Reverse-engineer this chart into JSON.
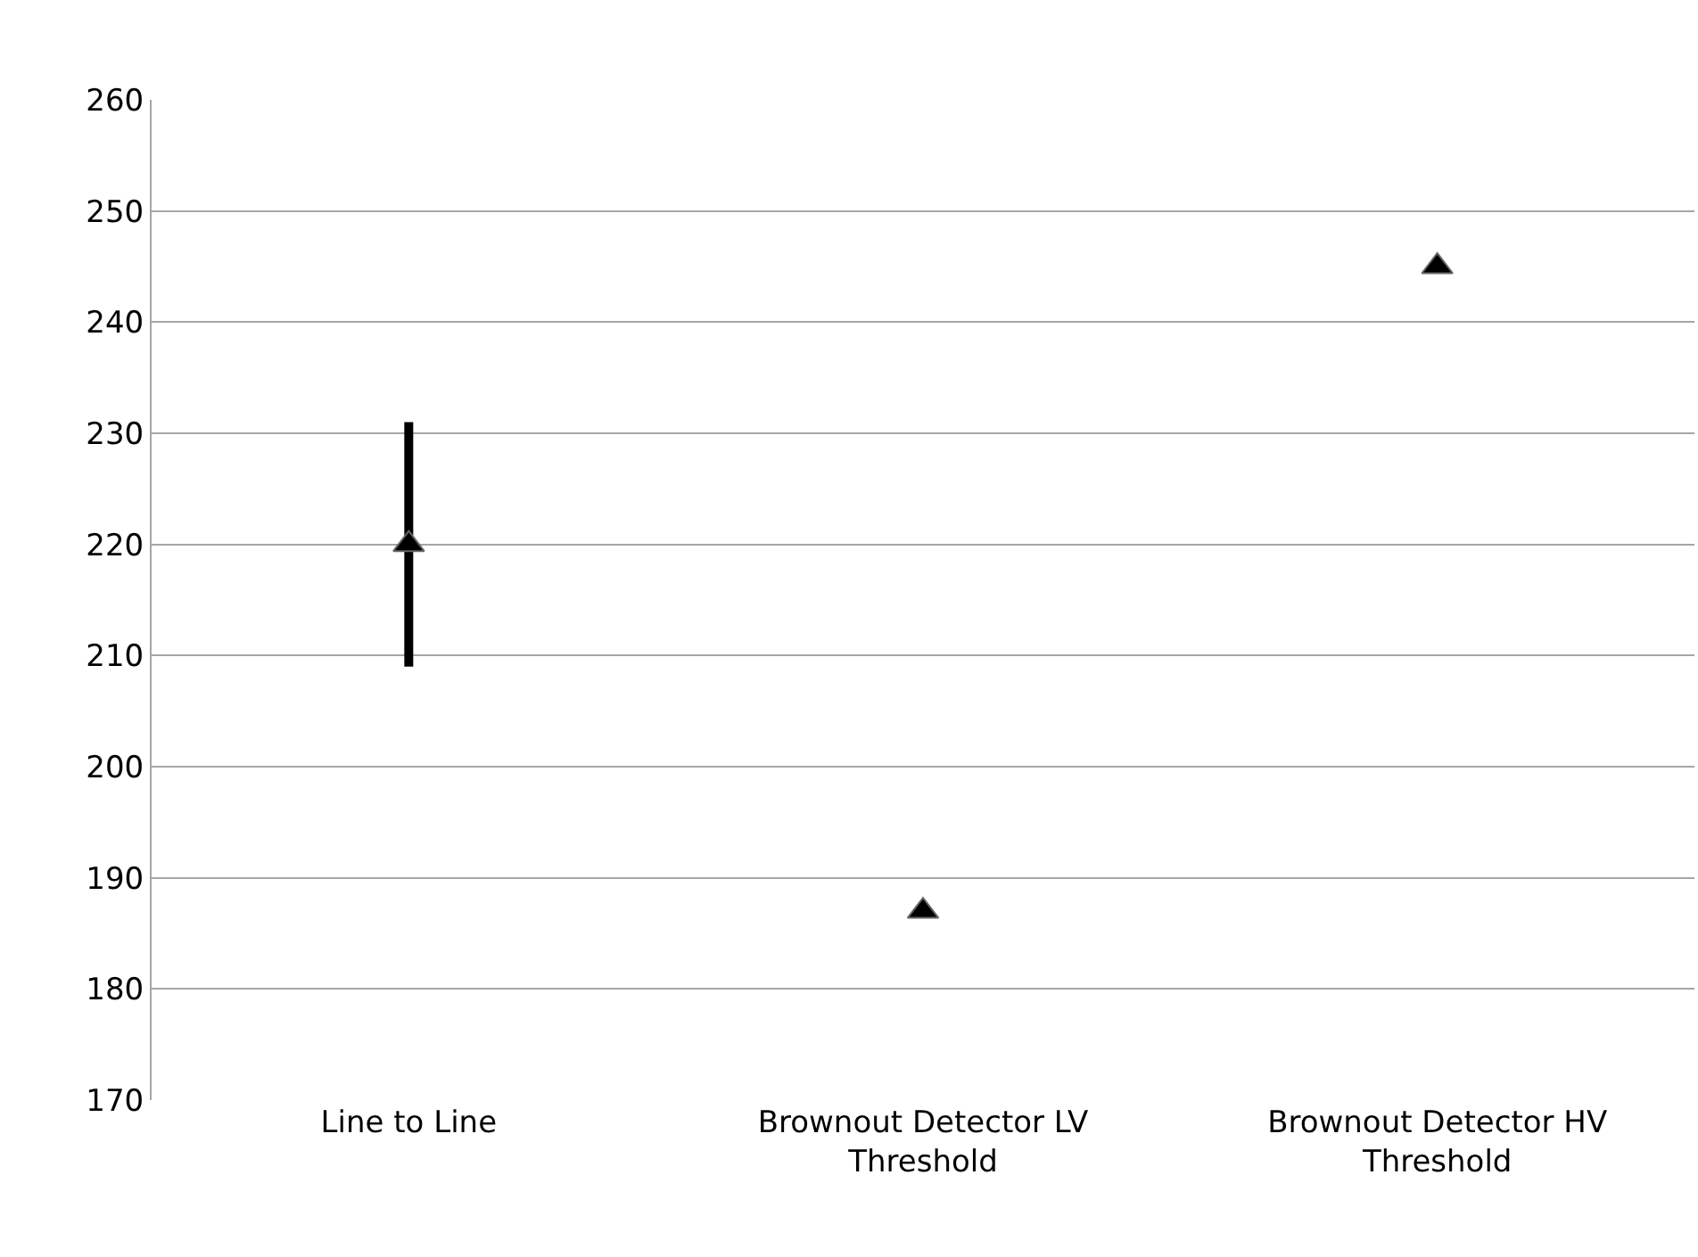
{
  "chart_data": {
    "type": "scatter",
    "categories": [
      "Line to Line",
      "Brownout Detector LV Threshold",
      "Brownout Detector HV Threshold"
    ],
    "values": [
      220,
      187,
      245
    ],
    "errors": [
      11,
      null,
      null
    ],
    "color": "#000000",
    "marker": "triangle",
    "ylim": [
      170,
      260
    ],
    "yticks": [
      170,
      180,
      190,
      200,
      210,
      220,
      230,
      240,
      250,
      260
    ],
    "grid": "y",
    "legend": false
  }
}
